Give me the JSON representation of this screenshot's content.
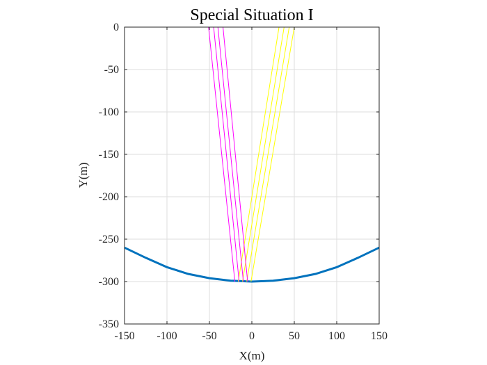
{
  "chart_data": {
    "type": "line",
    "title": "Special Situation I",
    "xlabel": "X(m)",
    "ylabel": "Y(m)",
    "xlim": [
      -150,
      150
    ],
    "ylim": [
      -350,
      0
    ],
    "x_ticks": [
      -150,
      -100,
      -50,
      0,
      50,
      100,
      150
    ],
    "y_ticks": [
      0,
      -50,
      -100,
      -150,
      -200,
      -250,
      -300,
      -350
    ],
    "x_tick_labels": [
      "-150",
      "-100",
      "-50",
      "0",
      "50",
      "100",
      "150"
    ],
    "y_tick_labels": [
      "0",
      "-50",
      "-100",
      "-150",
      "-200",
      "-250",
      "-300",
      "-350"
    ],
    "grid": true,
    "colors": {
      "curve": "#0072BD",
      "magenta": "#FF00FF",
      "yellow": "#FFFF00",
      "grid": "#DDDDDD",
      "axis": "#262626"
    },
    "curve": {
      "x": [
        -150,
        -125,
        -100,
        -75,
        -50,
        -25,
        0,
        25,
        50,
        75,
        100,
        125,
        150
      ],
      "y": [
        -260,
        -272,
        -283,
        -291,
        -296,
        -299,
        -300,
        -299,
        -296,
        -291,
        -283,
        -272,
        -260
      ]
    },
    "magenta_rays": [
      {
        "x": [
          -51,
          -20
        ],
        "y": [
          0,
          -300
        ]
      },
      {
        "x": [
          -45,
          -15
        ],
        "y": [
          0,
          -300
        ]
      },
      {
        "x": [
          -40,
          -10
        ],
        "y": [
          0,
          -300
        ]
      },
      {
        "x": [
          -34,
          -5
        ],
        "y": [
          0,
          -300
        ]
      }
    ],
    "yellow_rays": [
      {
        "x": [
          -16,
          32
        ],
        "y": [
          -300,
          0
        ]
      },
      {
        "x": [
          -11,
          38
        ],
        "y": [
          -300,
          0
        ]
      },
      {
        "x": [
          -6,
          44
        ],
        "y": [
          -300,
          0
        ]
      },
      {
        "x": [
          -1,
          50
        ],
        "y": [
          -300,
          0
        ]
      }
    ]
  }
}
